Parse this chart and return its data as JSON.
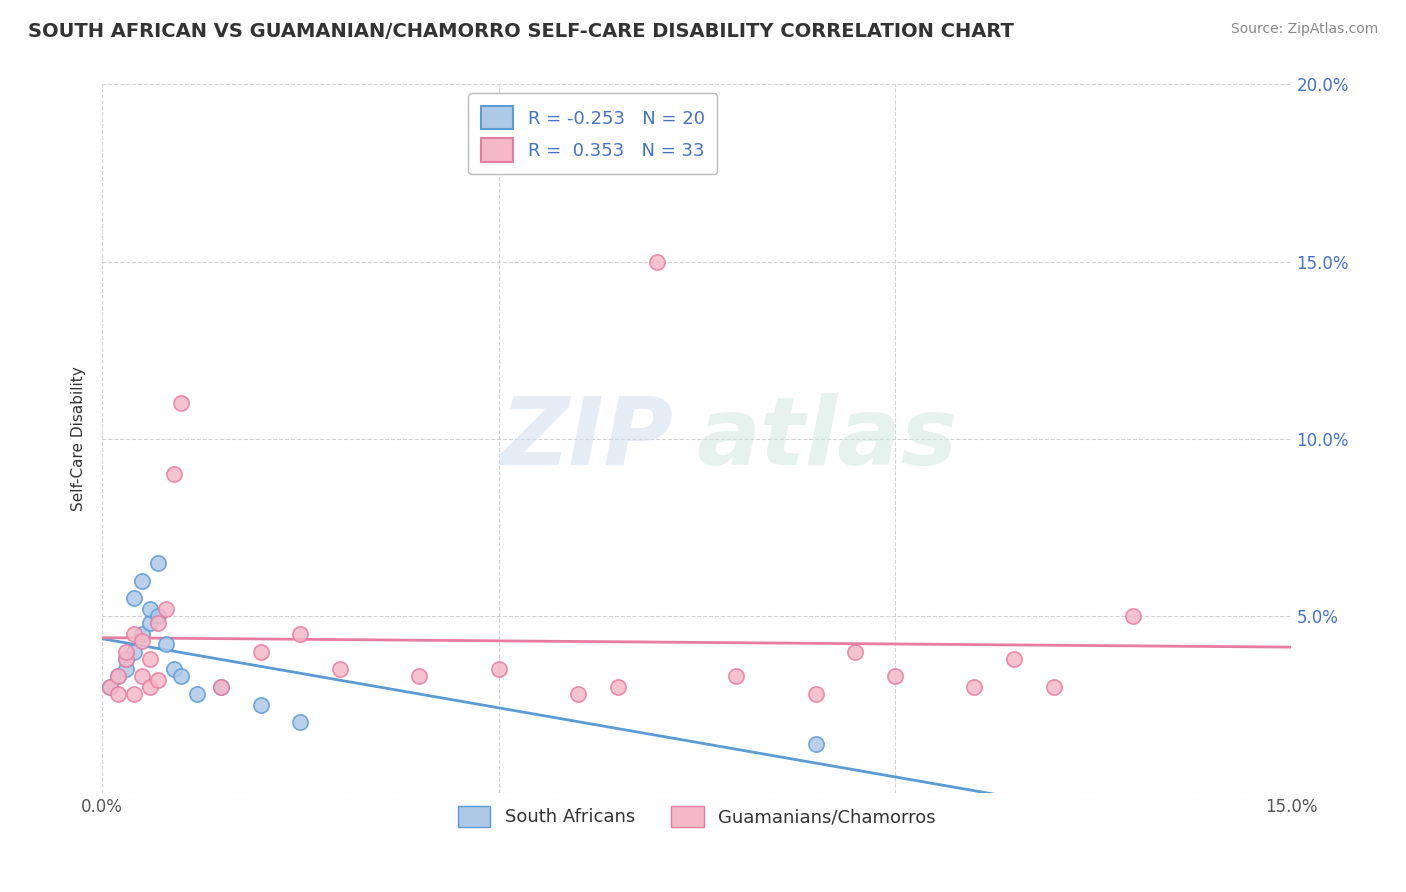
{
  "title": "SOUTH AFRICAN VS GUAMANIAN/CHAMORRO SELF-CARE DISABILITY CORRELATION CHART",
  "source": "Source: ZipAtlas.com",
  "ylabel": "Self-Care Disability",
  "xlim": [
    0.0,
    0.15
  ],
  "ylim": [
    0.0,
    0.2
  ],
  "xticks": [
    0.0,
    0.05,
    0.1,
    0.15
  ],
  "xtick_labels": [
    "0.0%",
    "",
    "",
    "15.0%"
  ],
  "yticks": [
    0.0,
    0.05,
    0.1,
    0.15,
    0.2
  ],
  "ytick_labels_right": [
    "",
    "5.0%",
    "10.0%",
    "15.0%",
    "20.0%"
  ],
  "blue_color": "#aec8e8",
  "pink_color": "#f4b8c8",
  "blue_edge_color": "#5b9bd5",
  "pink_edge_color": "#e87ca0",
  "blue_line_color": "#5b9bd5",
  "pink_line_color": "#e87ca0",
  "blue_R": -0.253,
  "blue_N": 20,
  "pink_R": 0.353,
  "pink_N": 33,
  "blue_x": [
    0.001,
    0.002,
    0.003,
    0.003,
    0.004,
    0.004,
    0.005,
    0.005,
    0.006,
    0.006,
    0.007,
    0.007,
    0.008,
    0.009,
    0.01,
    0.012,
    0.015,
    0.02,
    0.025,
    0.09
  ],
  "blue_y": [
    0.03,
    0.033,
    0.035,
    0.038,
    0.04,
    0.055,
    0.045,
    0.06,
    0.048,
    0.052,
    0.05,
    0.065,
    0.042,
    0.035,
    0.033,
    0.028,
    0.03,
    0.025,
    0.02,
    0.014
  ],
  "pink_x": [
    0.001,
    0.002,
    0.002,
    0.003,
    0.003,
    0.004,
    0.004,
    0.005,
    0.005,
    0.006,
    0.006,
    0.007,
    0.007,
    0.008,
    0.009,
    0.01,
    0.015,
    0.02,
    0.025,
    0.03,
    0.04,
    0.05,
    0.06,
    0.065,
    0.07,
    0.08,
    0.09,
    0.095,
    0.1,
    0.11,
    0.115,
    0.12,
    0.13
  ],
  "pink_y": [
    0.03,
    0.028,
    0.033,
    0.038,
    0.04,
    0.028,
    0.045,
    0.033,
    0.043,
    0.038,
    0.03,
    0.032,
    0.048,
    0.052,
    0.09,
    0.11,
    0.03,
    0.04,
    0.045,
    0.035,
    0.033,
    0.035,
    0.028,
    0.03,
    0.15,
    0.033,
    0.028,
    0.04,
    0.033,
    0.03,
    0.038,
    0.03,
    0.05
  ],
  "watermark_zip": "ZIP",
  "watermark_atlas": "atlas",
  "legend_label_blue": "South Africans",
  "legend_label_pink": "Guamanians/Chamorros",
  "background_color": "#ffffff",
  "grid_color": "#cccccc",
  "title_fontsize": 14,
  "source_fontsize": 10,
  "axis_label_fontsize": 11,
  "tick_fontsize": 12,
  "legend_fontsize": 13
}
